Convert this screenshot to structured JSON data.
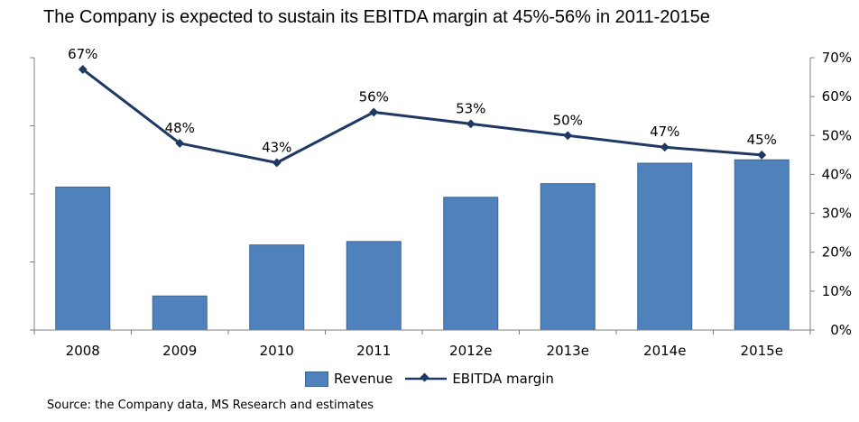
{
  "chart_data": {
    "type": "bar",
    "title": "The Company is expected to sustain its EBITDA margin at 45%-56% in 2011-2015e",
    "categories": [
      "2008",
      "2009",
      "2010",
      "2011",
      "2012e",
      "2013e",
      "2014e",
      "2015e"
    ],
    "series": [
      {
        "name": "Revenue",
        "type": "bar",
        "axis": "left",
        "values": [
          4.2,
          1.0,
          2.5,
          2.6,
          3.9,
          4.3,
          4.9,
          5.0
        ]
      },
      {
        "name": "EBITDA margin",
        "type": "line",
        "axis": "right",
        "values": [
          67,
          48,
          43,
          56,
          53,
          50,
          47,
          45
        ],
        "labels": [
          "67%",
          "48%",
          "43%",
          "56%",
          "53%",
          "50%",
          "47%",
          "45%"
        ]
      }
    ],
    "left_axis": {
      "ylim": [
        0,
        8
      ],
      "tick_labels": []
    },
    "right_axis": {
      "ylim": [
        0,
        70
      ],
      "ticks": [
        0,
        10,
        20,
        30,
        40,
        50,
        60,
        70
      ],
      "tick_labels": [
        "0%",
        "10%",
        "20%",
        "30%",
        "40%",
        "50%",
        "60%",
        "70%"
      ]
    },
    "legend": "bottom-center",
    "grid": false,
    "colors": {
      "bar": "#4f81bd",
      "bar_edge": "#3a6494",
      "line": "#1f3864"
    }
  },
  "source_note": "Source:  the Company data, MS Research and estimates"
}
